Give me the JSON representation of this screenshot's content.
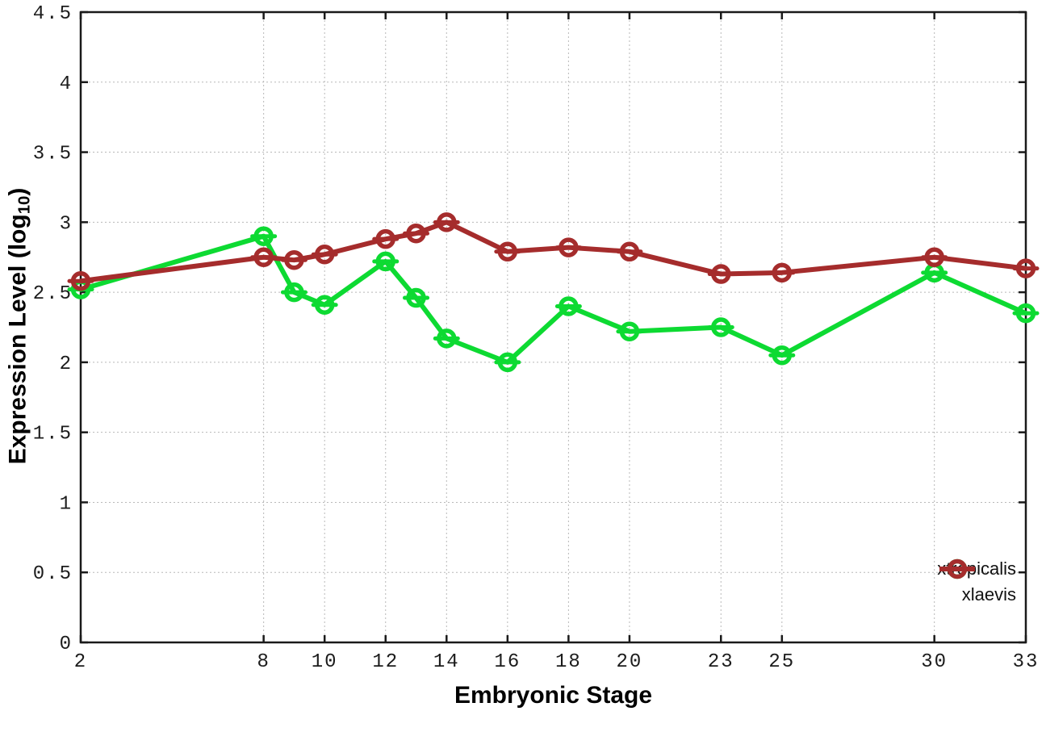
{
  "chart_data": {
    "type": "line",
    "title": "",
    "xlabel": "Embryonic Stage",
    "ylabel": "Expression Level (log10)",
    "ylabel_parts": {
      "main": "Expression Level (log",
      "sub": "10",
      "end": ")"
    },
    "x": [
      2,
      8,
      9,
      10,
      12,
      13,
      14,
      16,
      18,
      20,
      23,
      25,
      30,
      33
    ],
    "xticks": [
      2,
      8,
      10,
      12,
      14,
      16,
      18,
      20,
      23,
      25,
      30,
      33
    ],
    "yticks": [
      0,
      0.5,
      1,
      1.5,
      2,
      2.5,
      3,
      3.5,
      4,
      4.5
    ],
    "xlim": [
      2,
      33
    ],
    "ylim": [
      0,
      4.5
    ],
    "grid": true,
    "legend_position": "bottom-right",
    "marker": "open-circle-with-dash",
    "series": [
      {
        "name": "xtropicalis",
        "color": "#0dda32",
        "values": [
          2.52,
          2.9,
          2.5,
          2.41,
          2.72,
          2.46,
          2.17,
          2.0,
          2.4,
          2.22,
          2.25,
          2.05,
          2.64,
          2.35
        ]
      },
      {
        "name": "xlaevis",
        "color": "#a52c2c",
        "values": [
          2.58,
          2.75,
          2.73,
          2.77,
          2.88,
          2.92,
          3.0,
          2.79,
          2.82,
          2.79,
          2.63,
          2.64,
          2.75,
          2.67
        ]
      }
    ]
  },
  "colors": {
    "background": "#ffffff",
    "grid": "#b8b8b8",
    "axis": "#1a1a1a",
    "tick_label": "#1c1c1c"
  }
}
